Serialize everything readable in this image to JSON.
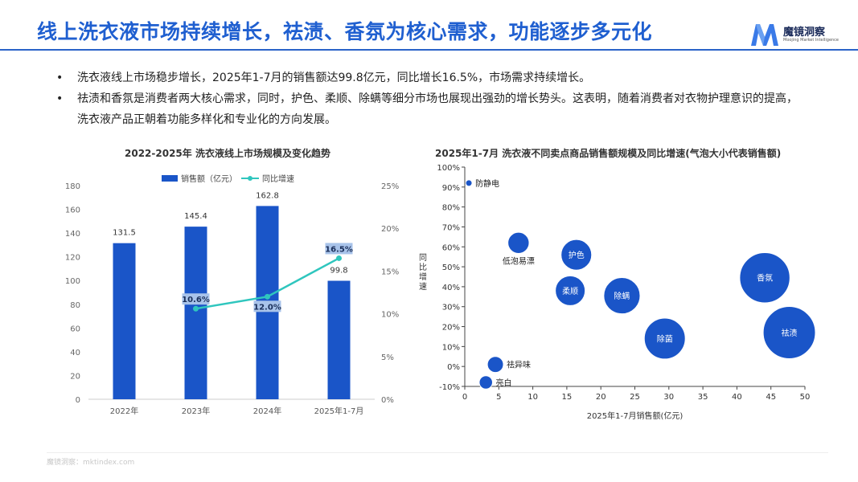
{
  "header": {
    "title": "线上洗衣液市场持续增长，祛渍、香氛为核心需求，功能逐步多元化",
    "logo_name": "魔镜洞察",
    "logo_sub": "Moojing Market Intelligence"
  },
  "bullets": [
    "洗衣液线上市场稳步增长，2025年1-7月的销售额达99.8亿元，同比增长16.5%，市场需求持续增长。",
    "祛渍和香氛是消费者两大核心需求，同时，护色、柔顺、除螨等细分市场也展现出强劲的增长势头。这表明，随着消费者对衣物护理意识的提高，洗衣液产品正朝着功能多样化和专业化的方向发展。"
  ],
  "footer": "魔镜洞察：mktindex.com",
  "colors": {
    "accent": "#1f5fd0",
    "bar": "#1a55c8",
    "line": "#2fc6be"
  },
  "chart_data": [
    {
      "type": "bar",
      "title": "2022-2025年 洗衣液线上市场规模及变化趋势",
      "categories": [
        "2022年",
        "2023年",
        "2024年",
        "2025年1-7月"
      ],
      "series": [
        {
          "name": "销售额（亿元）",
          "type": "bar",
          "axis": "left",
          "values": [
            131.5,
            145.4,
            162.8,
            99.8
          ]
        },
        {
          "name": "同比增速",
          "type": "line",
          "axis": "right",
          "values": [
            null,
            10.6,
            12.0,
            16.5
          ],
          "labels": [
            "",
            "10.6%",
            "12.0%",
            "16.5%"
          ]
        }
      ],
      "ylim": [
        0,
        180
      ],
      "yticks": [
        0,
        20,
        40,
        60,
        80,
        100,
        120,
        140,
        160,
        180
      ],
      "y2lim": [
        0,
        25
      ],
      "y2ticks": [
        "0%",
        "5%",
        "10%",
        "15%",
        "20%",
        "25%"
      ],
      "legend": "top-center"
    },
    {
      "type": "scatter",
      "title": "2025年1-7月 洗衣液不同卖点商品销售额规模及同比增速(气泡大小代表销售额)",
      "xlabel": "2025年1-7月销售额(亿元)",
      "ylabel": "同比增速",
      "xlim": [
        0,
        50
      ],
      "xticks": [
        0,
        5,
        10,
        15,
        20,
        25,
        30,
        35,
        40,
        45,
        50
      ],
      "ylim": [
        -10,
        100
      ],
      "yticks": [
        "-10%",
        "0%",
        "10%",
        "20%",
        "30%",
        "40%",
        "50%",
        "60%",
        "70%",
        "80%",
        "90%",
        "100%"
      ],
      "points": [
        {
          "label": "防静电",
          "x": 0.6,
          "y": 92,
          "label_pos": "right"
        },
        {
          "label": "低泡易漂",
          "x": 7.9,
          "y": 62,
          "label_pos": "below"
        },
        {
          "label": "护色",
          "x": 16.4,
          "y": 56,
          "label_pos": "inside"
        },
        {
          "label": "柔顺",
          "x": 15.5,
          "y": 38,
          "label_pos": "inside"
        },
        {
          "label": "除螨",
          "x": 23.1,
          "y": 35.5,
          "label_pos": "inside"
        },
        {
          "label": "除菌",
          "x": 29.4,
          "y": 14,
          "label_pos": "inside"
        },
        {
          "label": "香氛",
          "x": 44.1,
          "y": 44.5,
          "label_pos": "inside"
        },
        {
          "label": "祛渍",
          "x": 47.7,
          "y": 17,
          "label_pos": "inside"
        },
        {
          "label": "祛异味",
          "x": 4.5,
          "y": 1,
          "label_pos": "right"
        },
        {
          "label": "亮白",
          "x": 3.1,
          "y": -8,
          "label_pos": "right"
        }
      ]
    }
  ]
}
